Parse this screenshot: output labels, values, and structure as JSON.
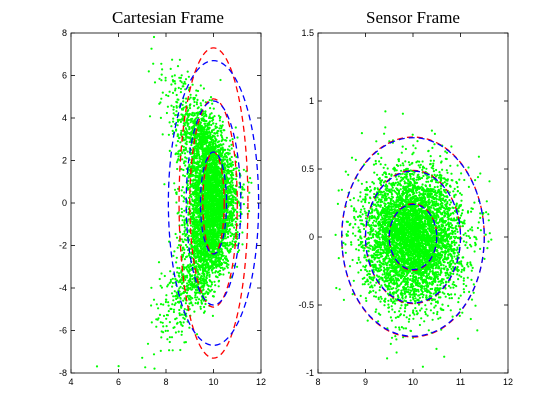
{
  "chart_data": [
    {
      "type": "scatter",
      "title": "Cartesian Frame",
      "xlim": [
        4,
        12
      ],
      "ylim": [
        -8,
        8
      ],
      "xticks": [
        "4",
        "6",
        "8",
        "10",
        "12"
      ],
      "yticks": [
        "-8",
        "-6",
        "-4",
        "-2",
        "0",
        "2",
        "4",
        "6",
        "8"
      ],
      "grid": false,
      "legend": "none",
      "series": [
        {
          "kind": "points",
          "color": "#00ff00",
          "count": 5000,
          "center": [
            10,
            0
          ],
          "spread": [
            0.55,
            2.3
          ],
          "shape": "banana"
        },
        {
          "kind": "ellipse-set",
          "color": "#ff0000",
          "style": "dashed",
          "center": [
            10,
            0
          ],
          "rings": [
            {
              "rx": 0.45,
              "ry": 2.4
            },
            {
              "rx": 1.0,
              "ry": 4.9
            },
            {
              "rx": 1.45,
              "ry": 7.3
            }
          ]
        },
        {
          "kind": "ellipse-set",
          "color": "#0000ff",
          "style": "dashed",
          "center": [
            10,
            0
          ],
          "rings": [
            {
              "rx": 0.55,
              "ry": 2.4
            },
            {
              "rx": 1.15,
              "ry": 4.8
            },
            {
              "rx": 1.9,
              "ry": 6.7
            }
          ]
        }
      ]
    },
    {
      "type": "scatter",
      "title": "Sensor Frame",
      "xlim": [
        8,
        12
      ],
      "ylim": [
        -1,
        1.5
      ],
      "xticks": [
        "8",
        "9",
        "10",
        "11",
        "12"
      ],
      "yticks": [
        "-1",
        "-0.5",
        "0",
        "0.5",
        "1",
        "1.5"
      ],
      "grid": false,
      "legend": "none",
      "series": [
        {
          "kind": "points",
          "color": "#00ff00",
          "count": 5000,
          "center": [
            10,
            0
          ],
          "spread": [
            0.5,
            0.24
          ]
        },
        {
          "kind": "ellipse-set",
          "color": "#ff0000",
          "style": "dashed",
          "center": [
            10,
            0
          ],
          "rings": [
            {
              "rx": 0.5,
              "ry": 0.245
            },
            {
              "rx": 1.0,
              "ry": 0.49
            },
            {
              "rx": 1.5,
              "ry": 0.735
            }
          ]
        },
        {
          "kind": "ellipse-set",
          "color": "#0000ff",
          "style": "dashed",
          "center": [
            10,
            0
          ],
          "rings": [
            {
              "rx": 0.5,
              "ry": 0.24
            },
            {
              "rx": 1.0,
              "ry": 0.485
            },
            {
              "rx": 1.5,
              "ry": 0.73
            }
          ]
        }
      ]
    }
  ]
}
